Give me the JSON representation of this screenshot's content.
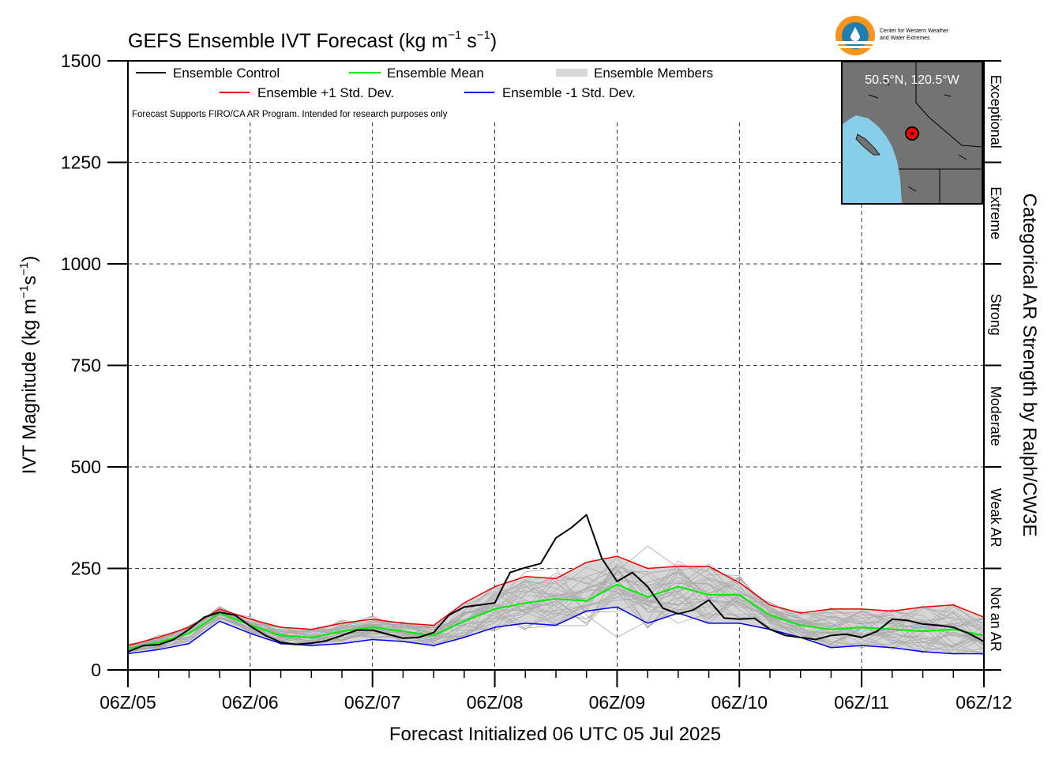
{
  "chart_data": {
    "type": "line",
    "title": "GEFS Ensemble IVT Forecast (kg m",
    "title_sup1": "−1",
    "title_mid": " s",
    "title_sup2": "−1",
    "title_end": ")",
    "ylabel_main": "IVT Magnitude (kg m",
    "ylabel_sup1": "−1",
    "ylabel_mid": "s",
    "ylabel_sup2": "−1",
    "ylabel_end": ")",
    "xlabel": "Forecast Initialized 06 UTC 05 Jul 2025",
    "right_label": "Categorical AR Strength by Ralph/CW3E",
    "note": "Forecast Supports FIRO/CA AR Program. Intended for research purposes only",
    "ylim": [
      0,
      1500
    ],
    "yticks": [
      0,
      250,
      500,
      750,
      1000,
      1250,
      1500
    ],
    "ytick_labels": [
      "0",
      "250",
      "500",
      "750",
      "1000",
      "1250",
      "1500"
    ],
    "xlim": [
      0,
      168
    ],
    "xticks": [
      0,
      24,
      48,
      72,
      96,
      120,
      144,
      168
    ],
    "xtick_labels": [
      "06Z/05",
      "06Z/06",
      "06Z/07",
      "06Z/08",
      "06Z/09",
      "06Z/10",
      "06Z/11",
      "06Z/12"
    ],
    "categories": [
      {
        "name": "Not an AR",
        "range": [
          0,
          250
        ]
      },
      {
        "name": "Weak AR",
        "range": [
          250,
          500
        ]
      },
      {
        "name": "Moderate",
        "range": [
          500,
          750
        ]
      },
      {
        "name": "Strong",
        "range": [
          750,
          1000
        ]
      },
      {
        "name": "Extreme",
        "range": [
          1000,
          1250
        ]
      },
      {
        "name": "Exceptional",
        "range": [
          1250,
          1500
        ]
      }
    ],
    "legend": {
      "control": "Ensemble Control",
      "mean": "Ensemble Mean",
      "members": "Ensemble Members",
      "plus_std": "Ensemble +1 Std. Dev.",
      "minus_std": "Ensemble -1 Std. Dev."
    },
    "inset": {
      "label": "50.5°N, 120.5°W",
      "lat": 50.5,
      "lon": -120.5
    },
    "logo_text": [
      "Center for Western Weather",
      "and Water Extremes"
    ],
    "colors": {
      "control": "#000000",
      "mean": "#00ee00",
      "plus_std": "#ee0000",
      "minus_std": "#0000ee",
      "members": "#aaaaaa",
      "band": "#d6d6d6",
      "ocean": "#87ceeb",
      "land": "#737373",
      "marker": "#ff0000"
    },
    "x": [
      0,
      6,
      12,
      18,
      24,
      30,
      36,
      42,
      48,
      54,
      60,
      66,
      72,
      78,
      84,
      90,
      96,
      102,
      108,
      114,
      120,
      126,
      132,
      138,
      144,
      150,
      156,
      162,
      168
    ],
    "series": [
      {
        "name": "Ensemble Control",
        "key": "control",
        "x": [
          0,
          3,
          6,
          9,
          12,
          15,
          18,
          21,
          24,
          27,
          30,
          33,
          36,
          39,
          42,
          45,
          48,
          51,
          54,
          57,
          60,
          63,
          66,
          69,
          72,
          75,
          78,
          81,
          84,
          87,
          90,
          93,
          96,
          99,
          102,
          105,
          108,
          111,
          114,
          117,
          120,
          123,
          126,
          129,
          132,
          135,
          138,
          141,
          144,
          147,
          150,
          153,
          156,
          159,
          162,
          165,
          168
        ],
        "values": [
          45,
          60,
          62,
          75,
          100,
          130,
          142,
          135,
          108,
          85,
          68,
          63,
          66,
          72,
          85,
          98,
          98,
          88,
          78,
          80,
          92,
          135,
          155,
          160,
          165,
          240,
          252,
          262,
          325,
          350,
          382,
          275,
          218,
          240,
          205,
          152,
          138,
          148,
          172,
          128,
          125,
          127,
          100,
          85,
          80,
          75,
          85,
          88,
          80,
          95,
          125,
          122,
          113,
          110,
          105,
          90,
          70
        ]
      },
      {
        "name": "Ensemble Mean",
        "key": "mean",
        "values": [
          52,
          68,
          90,
          140,
          110,
          85,
          80,
          95,
          105,
          95,
          85,
          120,
          150,
          165,
          175,
          170,
          210,
          180,
          205,
          185,
          185,
          135,
          110,
          100,
          105,
          100,
          95,
          100,
          85
        ]
      },
      {
        "name": "Ensemble +1 Std. Dev.",
        "key": "plus_std",
        "values": [
          60,
          80,
          105,
          150,
          125,
          105,
          100,
          115,
          125,
          115,
          110,
          165,
          205,
          230,
          225,
          265,
          280,
          250,
          255,
          255,
          215,
          160,
          140,
          150,
          150,
          145,
          155,
          160,
          130
        ]
      },
      {
        "name": "Ensemble -1 Std. Dev.",
        "key": "minus_std",
        "values": [
          40,
          50,
          65,
          120,
          90,
          65,
          60,
          65,
          75,
          70,
          60,
          80,
          105,
          115,
          110,
          145,
          155,
          115,
          140,
          115,
          115,
          100,
          80,
          55,
          60,
          55,
          45,
          40,
          40
        ]
      }
    ]
  }
}
